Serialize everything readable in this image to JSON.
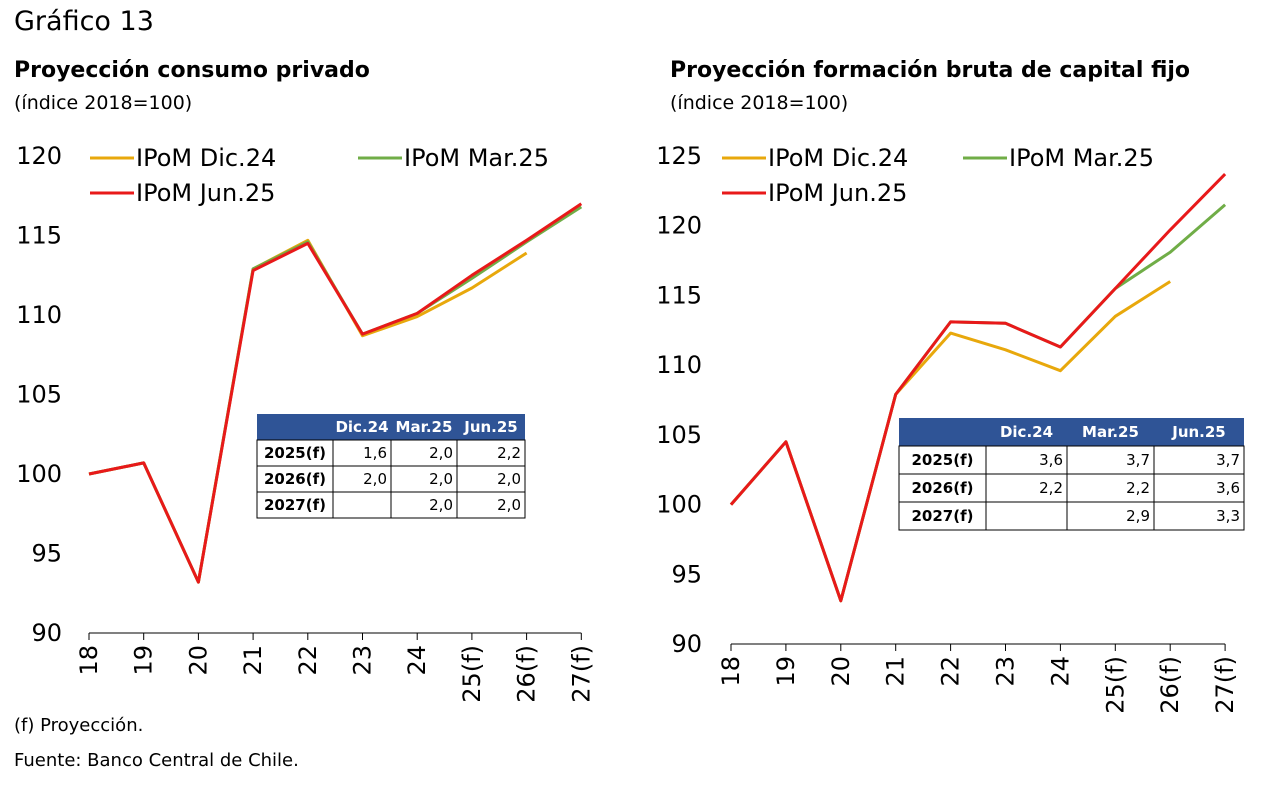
{
  "figure_title": "Gráfico 13",
  "notes": {
    "proj": "(f) Proyección.",
    "source": "Fuente: Banco Central de Chile."
  },
  "colors": {
    "dic": "#E8A80C",
    "mar": "#70AD47",
    "jun": "#E8191A",
    "table_header": "#2F5496"
  },
  "chart_data": [
    {
      "type": "line",
      "title": "Proyección consumo privado",
      "subtitle": "(índice 2018=100)",
      "categories": [
        "18",
        "19",
        "20",
        "21",
        "22",
        "23",
        "24",
        "25(f)",
        "26(f)",
        "27(f)"
      ],
      "ylim": [
        90,
        120
      ],
      "yticks": [
        90,
        95,
        100,
        105,
        110,
        115,
        120
      ],
      "grid": false,
      "legend": "top",
      "series": [
        {
          "name": "IPoM Dic.24",
          "color": "dic",
          "values": [
            100,
            100.7,
            93.2,
            112.9,
            114.7,
            108.7,
            109.9,
            111.7,
            113.9,
            null
          ]
        },
        {
          "name": "IPoM Mar.25",
          "color": "mar",
          "values": [
            100,
            100.7,
            93.2,
            112.9,
            114.6,
            108.8,
            110.1,
            112.3,
            114.6,
            116.8
          ]
        },
        {
          "name": "IPoM Jun.25",
          "color": "jun",
          "values": [
            100,
            100.7,
            93.2,
            112.8,
            114.5,
            108.8,
            110.1,
            112.5,
            114.7,
            117.0
          ]
        }
      ],
      "table": {
        "headers": [
          "",
          "Dic.24",
          "Mar.25",
          "Jun.25"
        ],
        "rows": [
          [
            "2025(f)",
            "1,6",
            "2,0",
            "2,2"
          ],
          [
            "2026(f)",
            "2,0",
            "2,0",
            "2,0"
          ],
          [
            "2027(f)",
            "",
            "2,0",
            "2,0"
          ]
        ]
      }
    },
    {
      "type": "line",
      "title": "Proyección formación bruta de capital fijo",
      "subtitle": "(índice 2018=100)",
      "categories": [
        "18",
        "19",
        "20",
        "21",
        "22",
        "23",
        "24",
        "25(f)",
        "26(f)",
        "27(f)"
      ],
      "ylim": [
        90,
        125
      ],
      "yticks": [
        90,
        95,
        100,
        105,
        110,
        115,
        120,
        125
      ],
      "grid": false,
      "legend": "top",
      "series": [
        {
          "name": "IPoM Dic.24",
          "color": "dic",
          "values": [
            100,
            104.5,
            93.1,
            107.9,
            112.3,
            111.1,
            109.6,
            113.5,
            116.0,
            null
          ]
        },
        {
          "name": "IPoM Mar.25",
          "color": "mar",
          "values": [
            100,
            104.5,
            93.1,
            107.9,
            113.1,
            113.0,
            111.3,
            115.5,
            118.1,
            121.5
          ]
        },
        {
          "name": "IPoM Jun.25",
          "color": "jun",
          "values": [
            100,
            104.5,
            93.1,
            107.9,
            113.1,
            113.0,
            111.3,
            115.5,
            119.7,
            123.7
          ]
        }
      ],
      "table": {
        "headers": [
          "",
          "Dic.24",
          "Mar.25",
          "Jun.25"
        ],
        "rows": [
          [
            "2025(f)",
            "3,6",
            "3,7",
            "3,7"
          ],
          [
            "2026(f)",
            "2,2",
            "2,2",
            "3,6"
          ],
          [
            "2027(f)",
            "",
            "2,9",
            "3,3"
          ]
        ]
      }
    }
  ]
}
